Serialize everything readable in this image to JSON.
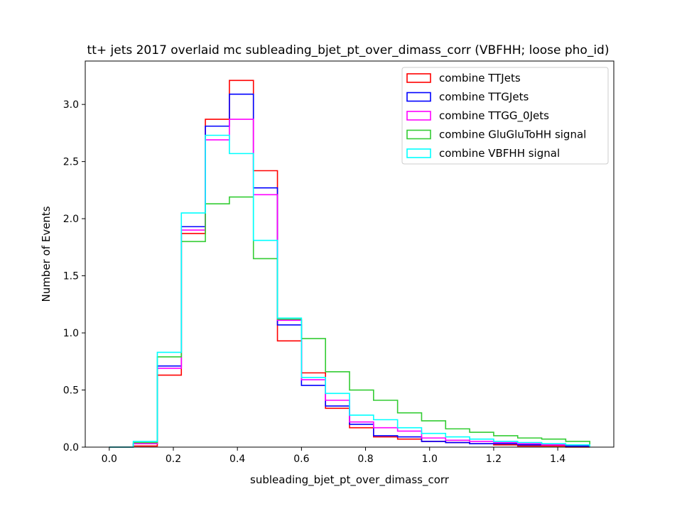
{
  "chart_data": {
    "type": "histogram-step",
    "title": "tt+ jets 2017 overlaid mc subleading_bjet_pt_over_dimass_corr (VBFHH; loose pho_id)",
    "xlabel": "subleading_bjet_pt_over_dimass_corr",
    "ylabel": "Number of Events",
    "xlim": [
      -0.075,
      1.575
    ],
    "ylim": [
      0.0,
      3.38
    ],
    "xticks": [
      0.0,
      0.2,
      0.4,
      0.6,
      0.8,
      1.0,
      1.2,
      1.4
    ],
    "xtick_labels": [
      "0.0",
      "0.2",
      "0.4",
      "0.6",
      "0.8",
      "1.0",
      "1.2",
      "1.4"
    ],
    "yticks": [
      0.0,
      0.5,
      1.0,
      1.5,
      2.0,
      2.5,
      3.0
    ],
    "ytick_labels": [
      "0.0",
      "0.5",
      "1.0",
      "1.5",
      "2.0",
      "2.5",
      "3.0"
    ],
    "bin_edges": [
      0.0,
      0.075,
      0.15,
      0.225,
      0.3,
      0.375,
      0.45,
      0.525,
      0.6,
      0.675,
      0.75,
      0.825,
      0.9,
      0.975,
      1.05,
      1.125,
      1.2,
      1.275,
      1.35,
      1.425,
      1.5
    ],
    "legend_position": "upper right",
    "grid": false,
    "series": [
      {
        "name": "combine TTJets",
        "color": "#ff0000",
        "values": [
          0.0,
          0.01,
          0.63,
          1.87,
          2.87,
          3.21,
          2.42,
          0.93,
          0.65,
          0.34,
          0.17,
          0.09,
          0.07,
          0.05,
          0.04,
          0.03,
          0.02,
          0.01,
          0.01,
          0.0
        ]
      },
      {
        "name": "combine TTGJets",
        "color": "#0000ff",
        "values": [
          0.0,
          0.03,
          0.71,
          1.93,
          2.81,
          3.09,
          2.27,
          1.07,
          0.54,
          0.36,
          0.2,
          0.1,
          0.09,
          0.05,
          0.04,
          0.03,
          0.03,
          0.02,
          0.02,
          0.01
        ]
      },
      {
        "name": "combine TTGG_0Jets",
        "color": "#ff00ff",
        "values": [
          0.0,
          0.03,
          0.69,
          1.9,
          2.69,
          2.87,
          2.21,
          1.11,
          0.59,
          0.41,
          0.22,
          0.17,
          0.14,
          0.08,
          0.06,
          0.05,
          0.04,
          0.03,
          0.02,
          0.02
        ]
      },
      {
        "name": "combine GluGluToHH signal",
        "color": "#33cc33",
        "values": [
          0.0,
          0.04,
          0.79,
          1.8,
          2.13,
          2.19,
          1.65,
          1.12,
          0.95,
          0.66,
          0.5,
          0.41,
          0.3,
          0.23,
          0.16,
          0.13,
          0.1,
          0.08,
          0.07,
          0.05
        ]
      },
      {
        "name": "combine VBFHH signal",
        "color": "#00ffff",
        "values": [
          0.0,
          0.05,
          0.83,
          2.05,
          2.73,
          2.57,
          1.81,
          1.13,
          0.61,
          0.47,
          0.28,
          0.24,
          0.17,
          0.12,
          0.09,
          0.07,
          0.05,
          0.04,
          0.03,
          0.02
        ]
      }
    ]
  }
}
